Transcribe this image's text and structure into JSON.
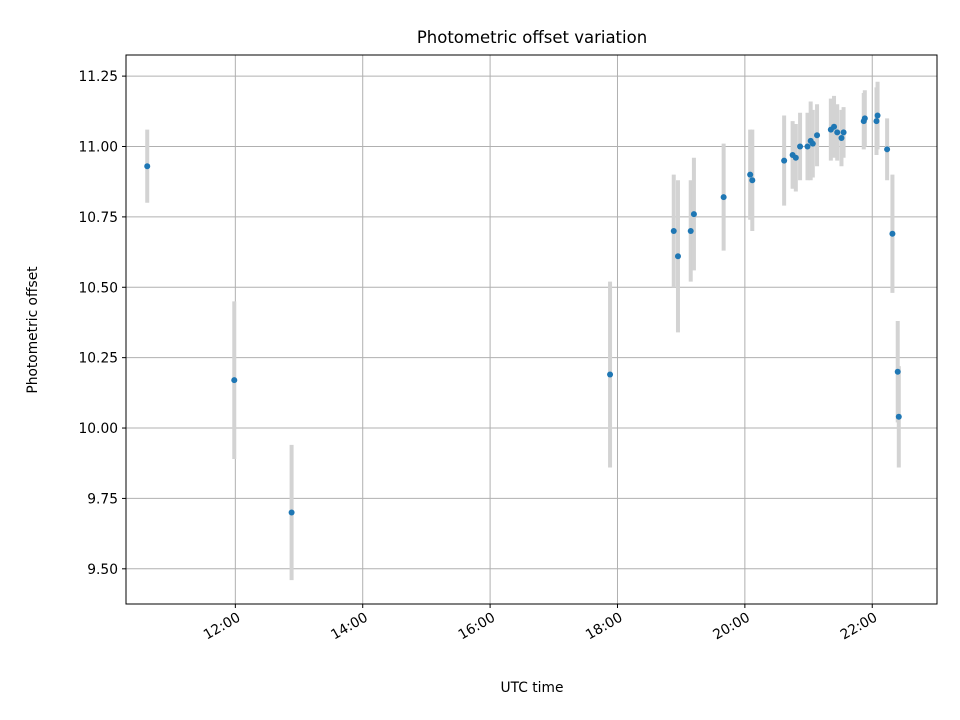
{
  "chart_data": {
    "type": "scatter",
    "title": "Photometric offset variation",
    "xlabel": "UTC time",
    "ylabel": "Photometric offset",
    "x_ticks": [
      "12:00",
      "14:00",
      "16:00",
      "18:00",
      "20:00",
      "22:00"
    ],
    "y_ticks": [
      "9.50",
      "9.75",
      "10.00",
      "10.25",
      "10.50",
      "10.75",
      "11.00",
      "11.25"
    ],
    "xlim": [
      "10:17",
      "23:01"
    ],
    "ylim": [
      9.375,
      11.325
    ],
    "grid": true,
    "colors": {
      "point": "#1f77b4",
      "errorbar": "#d3d3d3",
      "grid": "#b0b0b0"
    },
    "points": [
      {
        "x": "10:37",
        "y": 10.93,
        "err": 0.13
      },
      {
        "x": "11:59",
        "y": 10.17,
        "err": 0.28
      },
      {
        "x": "12:53",
        "y": 9.7,
        "err": 0.24
      },
      {
        "x": "17:53",
        "y": 10.19,
        "err": 0.33
      },
      {
        "x": "18:53",
        "y": 10.7,
        "err": 0.2
      },
      {
        "x": "18:57",
        "y": 10.61,
        "err": 0.27
      },
      {
        "x": "19:09",
        "y": 10.7,
        "err": 0.18
      },
      {
        "x": "19:12",
        "y": 10.76,
        "err": 0.2
      },
      {
        "x": "19:40",
        "y": 10.82,
        "err": 0.19
      },
      {
        "x": "20:05",
        "y": 10.9,
        "err": 0.16
      },
      {
        "x": "20:07",
        "y": 10.88,
        "err": 0.18
      },
      {
        "x": "20:37",
        "y": 10.95,
        "err": 0.16
      },
      {
        "x": "20:45",
        "y": 10.97,
        "err": 0.12
      },
      {
        "x": "20:48",
        "y": 10.96,
        "err": 0.12
      },
      {
        "x": "20:52",
        "y": 11.0,
        "err": 0.12
      },
      {
        "x": "20:59",
        "y": 11.0,
        "err": 0.12
      },
      {
        "x": "21:02",
        "y": 11.02,
        "err": 0.14
      },
      {
        "x": "21:04",
        "y": 11.01,
        "err": 0.12
      },
      {
        "x": "21:08",
        "y": 11.04,
        "err": 0.11
      },
      {
        "x": "21:21",
        "y": 11.06,
        "err": 0.11
      },
      {
        "x": "21:24",
        "y": 11.07,
        "err": 0.11
      },
      {
        "x": "21:27",
        "y": 11.05,
        "err": 0.1
      },
      {
        "x": "21:31",
        "y": 11.03,
        "err": 0.1
      },
      {
        "x": "21:33",
        "y": 11.05,
        "err": 0.09
      },
      {
        "x": "21:52",
        "y": 11.09,
        "err": 0.1
      },
      {
        "x": "21:53",
        "y": 11.1,
        "err": 0.1
      },
      {
        "x": "22:04",
        "y": 11.09,
        "err": 0.12
      },
      {
        "x": "22:05",
        "y": 11.11,
        "err": 0.12
      },
      {
        "x": "22:14",
        "y": 10.99,
        "err": 0.11
      },
      {
        "x": "22:19",
        "y": 10.69,
        "err": 0.21
      },
      {
        "x": "22:24",
        "y": 10.2,
        "err": 0.18
      },
      {
        "x": "22:25",
        "y": 10.04,
        "err": 0.18
      }
    ]
  }
}
